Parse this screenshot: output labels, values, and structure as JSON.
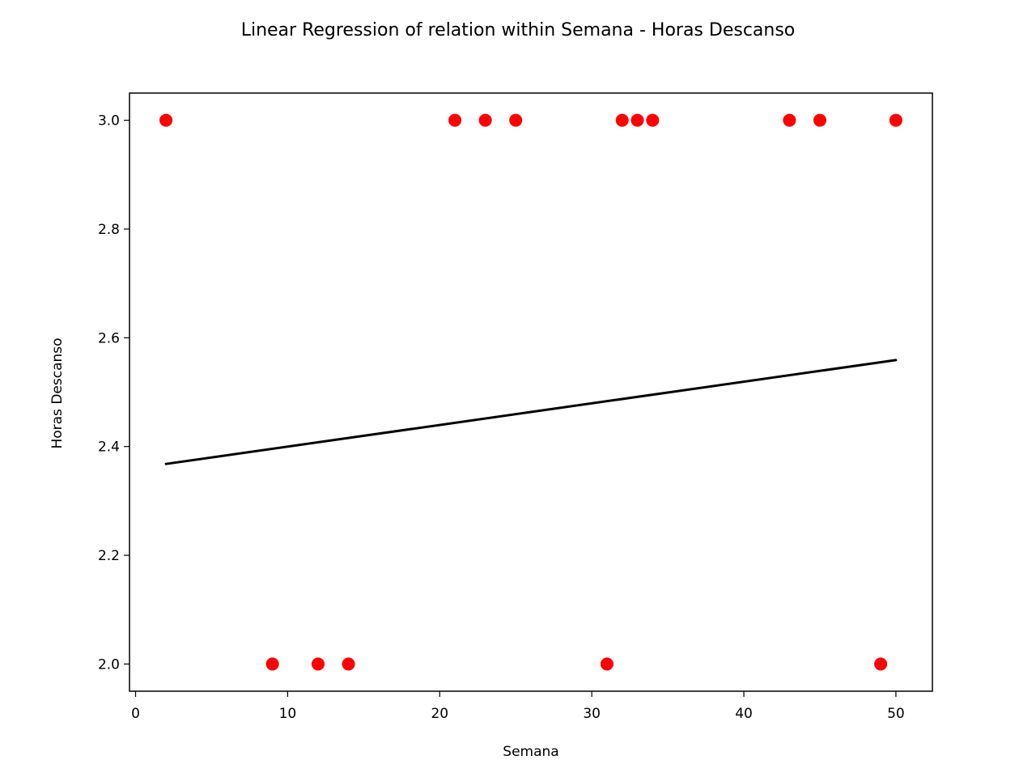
{
  "chart_data": {
    "type": "scatter",
    "title": "Linear Regression of relation within Semana - Horas Descanso",
    "xlabel": "Semana",
    "ylabel": "Horas Descanso",
    "xlim": [
      -0.4,
      52.4
    ],
    "ylim": [
      1.95,
      3.05
    ],
    "xticks": [
      0,
      10,
      20,
      30,
      40,
      50
    ],
    "xtick_labels": [
      "0",
      "10",
      "20",
      "30",
      "40",
      "50"
    ],
    "yticks": [
      2.0,
      2.2,
      2.4,
      2.6,
      2.8,
      3.0
    ],
    "ytick_labels": [
      "2.0",
      "2.2",
      "2.4",
      "2.6",
      "2.8",
      "3.0"
    ],
    "grid": false,
    "legend": "none",
    "series": [
      {
        "type": "scatter",
        "color": "#ff0000",
        "points": [
          {
            "x": 2,
            "y": 3.0
          },
          {
            "x": 9,
            "y": 2.0
          },
          {
            "x": 12,
            "y": 2.0
          },
          {
            "x": 14,
            "y": 2.0
          },
          {
            "x": 21,
            "y": 3.0
          },
          {
            "x": 23,
            "y": 3.0
          },
          {
            "x": 25,
            "y": 3.0
          },
          {
            "x": 31,
            "y": 2.0
          },
          {
            "x": 32,
            "y": 3.0
          },
          {
            "x": 33,
            "y": 3.0
          },
          {
            "x": 34,
            "y": 3.0
          },
          {
            "x": 43,
            "y": 3.0
          },
          {
            "x": 45,
            "y": 3.0
          },
          {
            "x": 49,
            "y": 2.0
          },
          {
            "x": 50,
            "y": 3.0
          }
        ]
      },
      {
        "type": "line",
        "color": "#000000",
        "points": [
          {
            "x": 2,
            "y": 2.368
          },
          {
            "x": 50,
            "y": 2.559
          }
        ]
      }
    ]
  }
}
